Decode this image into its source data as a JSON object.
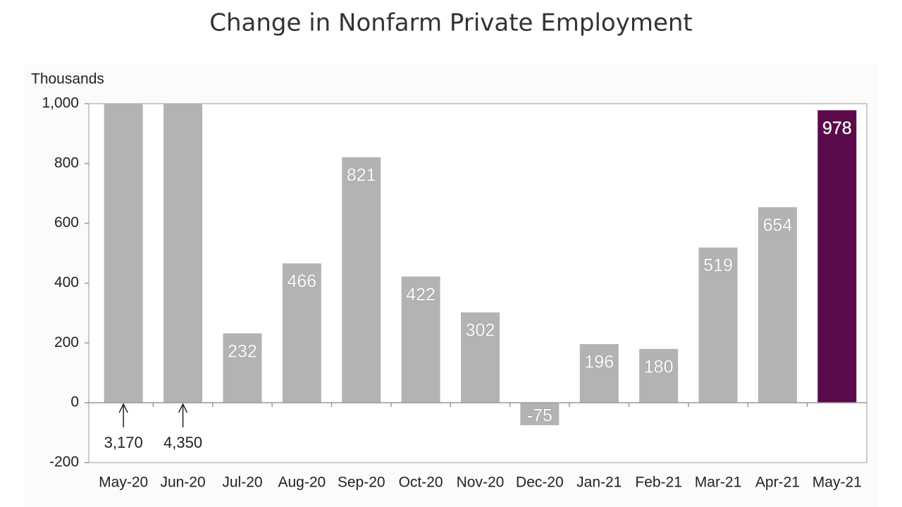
{
  "chart_data": {
    "type": "bar",
    "title": "Change in Nonfarm Private Employment",
    "y_axis_label": "Thousands",
    "categories": [
      "May-20",
      "Jun-20",
      "Jul-20",
      "Aug-20",
      "Sep-20",
      "Oct-20",
      "Nov-20",
      "Dec-20",
      "Jan-21",
      "Feb-21",
      "Mar-21",
      "Apr-21",
      "May-21"
    ],
    "values": [
      3170,
      4350,
      232,
      466,
      821,
      422,
      302,
      -75,
      196,
      180,
      519,
      654,
      978
    ],
    "value_labels": [
      "3,170",
      "4,350",
      "232",
      "466",
      "821",
      "422",
      "302",
      "-75",
      "196",
      "180",
      "519",
      "654",
      "978"
    ],
    "colors": [
      "#b3b3b3",
      "#b3b3b3",
      "#b3b3b3",
      "#b3b3b3",
      "#b3b3b3",
      "#b3b3b3",
      "#b3b3b3",
      "#b3b3b3",
      "#b3b3b3",
      "#b3b3b3",
      "#b3b3b3",
      "#b3b3b3",
      "#5b0a4b"
    ],
    "ylim": [
      -200,
      1000
    ],
    "yticks": [
      -200,
      0,
      200,
      400,
      600,
      800,
      {
        "value": 1000,
        "label": "1,000"
      }
    ],
    "grid": false
  }
}
